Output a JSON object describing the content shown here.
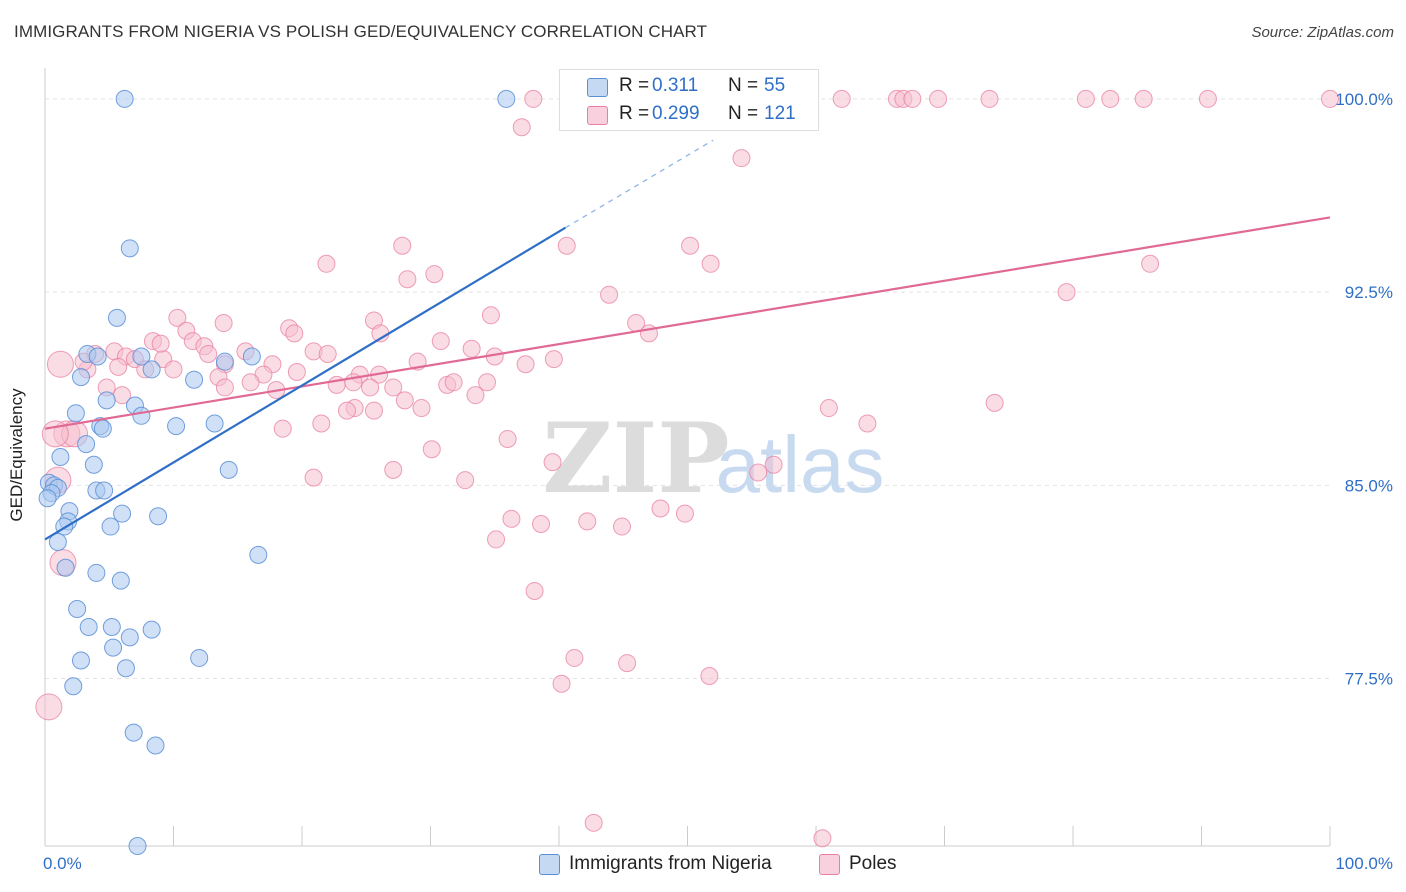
{
  "title": "IMMIGRANTS FROM NIGERIA VS POLISH GED/EQUIVALENCY CORRELATION CHART",
  "source": "Source: ZipAtlas.com",
  "watermark": {
    "zip": "ZIP",
    "atlas": "atlas"
  },
  "colors": {
    "blue_fill": "#aac8f0",
    "blue_stroke": "#5b8fd6",
    "blue_line": "#2f6fc7",
    "pink_fill": "#f6bfd0",
    "pink_stroke": "#e87fa1",
    "pink_line": "#e06a95",
    "value_text": "#2f6fc7"
  },
  "legend_top": {
    "rows": [
      {
        "r_label": "R =",
        "r_value": "0.311",
        "n_label": "N =",
        "n_value": "55",
        "series": "blue"
      },
      {
        "r_label": "R =",
        "r_value": "0.299",
        "n_label": "N =",
        "n_value": "121",
        "series": "pink"
      }
    ]
  },
  "legend_bottom": {
    "items": [
      {
        "label": "Immigrants from Nigeria",
        "series": "blue"
      },
      {
        "label": "Poles",
        "series": "pink"
      }
    ]
  },
  "chart_data": {
    "type": "scatter",
    "title": "IMMIGRANTS FROM NIGERIA VS POLISH GED/EQUIVALENCY CORRELATION CHART",
    "xlabel": "",
    "ylabel": "GED/Equivalency",
    "xlim": [
      0,
      100
    ],
    "ylim": [
      71.0,
      101.2
    ],
    "x_tick_labels": [
      {
        "value": 0,
        "label": "0.0%"
      },
      {
        "value": 100,
        "label": "100.0%"
      }
    ],
    "y_tick_labels": [
      {
        "value": 77.5,
        "label": "77.5%"
      },
      {
        "value": 85.0,
        "label": "85.0%"
      },
      {
        "value": 92.5,
        "label": "92.5%"
      },
      {
        "value": 100.0,
        "label": "100.0%"
      }
    ],
    "x_minor_ticks": [
      0,
      10,
      20,
      30,
      40,
      50,
      60,
      70,
      80,
      90,
      100
    ],
    "grid": true,
    "legend_position": "top-center",
    "series": [
      {
        "name": "Immigrants from Nigeria",
        "color": "blue",
        "trend": {
          "x": [
            0,
            40.5
          ],
          "y": [
            82.9,
            95.0
          ],
          "dashed_to": {
            "x": 52.0,
            "y": 98.4
          }
        },
        "points": [
          [
            6.2,
            100.0
          ],
          [
            35.9,
            100.0
          ],
          [
            6.6,
            94.2
          ],
          [
            5.6,
            91.5
          ],
          [
            3.3,
            90.1
          ],
          [
            4.1,
            90.0
          ],
          [
            7.5,
            90.0
          ],
          [
            16.1,
            90.0
          ],
          [
            8.3,
            89.5
          ],
          [
            14.0,
            89.8
          ],
          [
            2.8,
            89.2
          ],
          [
            11.6,
            89.1
          ],
          [
            4.8,
            88.3
          ],
          [
            7.0,
            88.1
          ],
          [
            2.4,
            87.8
          ],
          [
            7.5,
            87.7
          ],
          [
            4.3,
            87.3
          ],
          [
            4.5,
            87.2
          ],
          [
            10.2,
            87.3
          ],
          [
            13.2,
            87.4
          ],
          [
            3.2,
            86.6
          ],
          [
            1.2,
            86.1
          ],
          [
            3.8,
            85.8
          ],
          [
            14.3,
            85.6
          ],
          [
            0.3,
            85.1
          ],
          [
            0.7,
            85.0
          ],
          [
            1.0,
            84.9
          ],
          [
            0.5,
            84.7
          ],
          [
            4.0,
            84.8
          ],
          [
            4.6,
            84.8
          ],
          [
            0.2,
            84.5
          ],
          [
            1.9,
            84.0
          ],
          [
            6.0,
            83.9
          ],
          [
            8.8,
            83.8
          ],
          [
            1.8,
            83.6
          ],
          [
            1.5,
            83.4
          ],
          [
            5.1,
            83.4
          ],
          [
            1.0,
            82.8
          ],
          [
            16.6,
            82.3
          ],
          [
            1.6,
            81.8
          ],
          [
            4.0,
            81.6
          ],
          [
            5.9,
            81.3
          ],
          [
            2.5,
            80.2
          ],
          [
            3.4,
            79.5
          ],
          [
            5.2,
            79.5
          ],
          [
            8.3,
            79.4
          ],
          [
            6.6,
            79.1
          ],
          [
            5.3,
            78.7
          ],
          [
            2.8,
            78.2
          ],
          [
            12.0,
            78.3
          ],
          [
            6.3,
            77.9
          ],
          [
            2.2,
            77.2
          ],
          [
            6.9,
            75.4
          ],
          [
            8.6,
            74.9
          ],
          [
            7.2,
            71.0
          ]
        ]
      },
      {
        "name": "Poles",
        "color": "pink",
        "trend": {
          "x": [
            0,
            100
          ],
          "y": [
            87.2,
            95.4
          ]
        },
        "points": [
          [
            38.0,
            100.0
          ],
          [
            47.0,
            100.0
          ],
          [
            48.5,
            100.0
          ],
          [
            50.5,
            100.0
          ],
          [
            51.5,
            100.0
          ],
          [
            62.0,
            100.0
          ],
          [
            66.3,
            100.0
          ],
          [
            66.8,
            100.0
          ],
          [
            67.5,
            100.0
          ],
          [
            69.5,
            100.0
          ],
          [
            73.5,
            100.0
          ],
          [
            81.0,
            100.0
          ],
          [
            82.9,
            100.0
          ],
          [
            85.5,
            100.0
          ],
          [
            90.5,
            100.0
          ],
          [
            100.0,
            100.0
          ],
          [
            37.1,
            98.9
          ],
          [
            54.2,
            97.7
          ],
          [
            40.6,
            94.3
          ],
          [
            50.2,
            94.3
          ],
          [
            27.8,
            94.3
          ],
          [
            51.8,
            93.6
          ],
          [
            21.9,
            93.6
          ],
          [
            86.0,
            93.6
          ],
          [
            30.3,
            93.2
          ],
          [
            28.2,
            93.0
          ],
          [
            43.9,
            92.4
          ],
          [
            79.5,
            92.5
          ],
          [
            34.7,
            91.6
          ],
          [
            10.3,
            91.5
          ],
          [
            25.6,
            91.4
          ],
          [
            46.0,
            91.3
          ],
          [
            13.9,
            91.3
          ],
          [
            19.0,
            91.1
          ],
          [
            11.0,
            91.0
          ],
          [
            19.4,
            90.9
          ],
          [
            26.1,
            90.9
          ],
          [
            47.0,
            90.9
          ],
          [
            8.4,
            90.6
          ],
          [
            11.5,
            90.6
          ],
          [
            30.8,
            90.6
          ],
          [
            12.4,
            90.4
          ],
          [
            33.2,
            90.3
          ],
          [
            5.4,
            90.2
          ],
          [
            15.6,
            90.2
          ],
          [
            20.9,
            90.2
          ],
          [
            3.9,
            90.1
          ],
          [
            6.3,
            90.0
          ],
          [
            12.7,
            90.1
          ],
          [
            35.0,
            90.0
          ],
          [
            7.0,
            89.9
          ],
          [
            9.2,
            89.9
          ],
          [
            29.0,
            89.8
          ],
          [
            39.6,
            89.9
          ],
          [
            1.2,
            89.7
          ],
          [
            5.7,
            89.6
          ],
          [
            17.7,
            89.7
          ],
          [
            14.0,
            89.7
          ],
          [
            37.4,
            89.7
          ],
          [
            3.3,
            89.5
          ],
          [
            7.8,
            89.5
          ],
          [
            13.5,
            89.2
          ],
          [
            17.0,
            89.3
          ],
          [
            19.6,
            89.4
          ],
          [
            24.5,
            89.3
          ],
          [
            26.0,
            89.3
          ],
          [
            34.4,
            89.0
          ],
          [
            31.3,
            88.9
          ],
          [
            22.7,
            88.9
          ],
          [
            24.0,
            89.0
          ],
          [
            31.8,
            89.0
          ],
          [
            14.0,
            88.8
          ],
          [
            18.0,
            88.7
          ],
          [
            25.3,
            88.8
          ],
          [
            27.1,
            88.8
          ],
          [
            6.0,
            88.5
          ],
          [
            24.1,
            88.0
          ],
          [
            25.6,
            87.9
          ],
          [
            29.3,
            88.0
          ],
          [
            23.5,
            87.9
          ],
          [
            61.0,
            88.0
          ],
          [
            73.9,
            88.2
          ],
          [
            21.5,
            87.4
          ],
          [
            18.5,
            87.2
          ],
          [
            64.0,
            87.4
          ],
          [
            36.0,
            86.8
          ],
          [
            1.7,
            87.0
          ],
          [
            2.3,
            87.0
          ],
          [
            30.1,
            86.4
          ],
          [
            39.5,
            85.9
          ],
          [
            56.7,
            85.8
          ],
          [
            27.1,
            85.6
          ],
          [
            55.5,
            85.5
          ],
          [
            20.9,
            85.3
          ],
          [
            32.7,
            85.2
          ],
          [
            47.9,
            84.1
          ],
          [
            49.8,
            83.9
          ],
          [
            36.3,
            83.7
          ],
          [
            42.2,
            83.6
          ],
          [
            38.6,
            83.5
          ],
          [
            44.9,
            83.4
          ],
          [
            35.1,
            82.9
          ],
          [
            1.4,
            82.0
          ],
          [
            38.1,
            80.9
          ],
          [
            41.2,
            78.3
          ],
          [
            45.3,
            78.1
          ],
          [
            51.7,
            77.6
          ],
          [
            40.2,
            77.3
          ],
          [
            0.3,
            76.4
          ],
          [
            42.7,
            71.9
          ],
          [
            60.5,
            71.3
          ],
          [
            1.0,
            85.2
          ],
          [
            3.0,
            89.8
          ],
          [
            0.8,
            87.0
          ],
          [
            10.0,
            89.5
          ],
          [
            22.0,
            90.1
          ],
          [
            33.5,
            88.5
          ],
          [
            9.0,
            90.5
          ],
          [
            16.0,
            89.0
          ],
          [
            28.0,
            88.3
          ],
          [
            4.8,
            88.8
          ]
        ]
      }
    ]
  }
}
